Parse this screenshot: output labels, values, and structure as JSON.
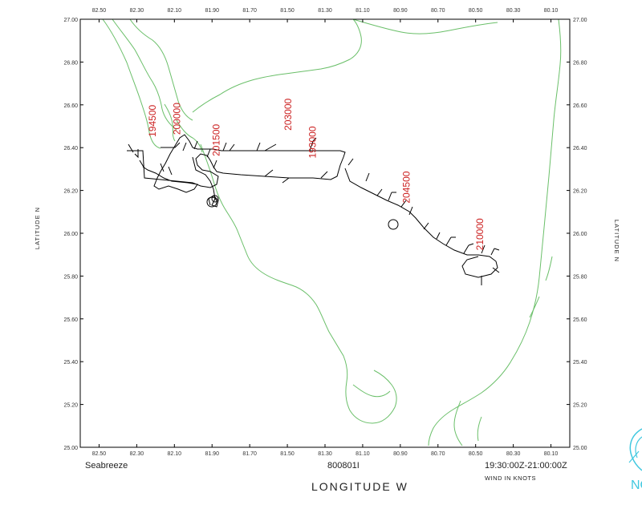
{
  "footer": {
    "left": "Seabreeze",
    "center": "800801I",
    "right": "19:30:00Z-21:00:00Z",
    "sub": "WIND IN KNOTS"
  },
  "axes": {
    "x_title": "LONGITUDE   W",
    "y_title": "LATITUDE   N",
    "x_ticks": [
      "82.50",
      "82.30",
      "82.10",
      "81.90",
      "81.70",
      "81.50",
      "81.30",
      "81.10",
      "80.90",
      "80.70",
      "80.50",
      "80.30",
      "80.10"
    ],
    "y_ticks": [
      "27.00",
      "26.80",
      "26.60",
      "26.40",
      "26.20",
      "26.00",
      "25.80",
      "25.60",
      "25.40",
      "25.20",
      "25.00"
    ]
  },
  "time_labels": [
    {
      "text": "194500",
      "lon": 82.2,
      "lat": 26.45
    },
    {
      "text": "200000",
      "lon": 82.07,
      "lat": 26.46
    },
    {
      "text": "203000",
      "lon": 81.48,
      "lat": 26.48
    },
    {
      "text": "193000",
      "lon": 81.35,
      "lat": 26.35
    },
    {
      "text": "201500",
      "lon": 81.86,
      "lat": 26.36
    },
    {
      "text": "204500",
      "lon": 80.85,
      "lat": 26.14
    },
    {
      "text": "210000",
      "lon": 80.46,
      "lat": 25.92
    }
  ],
  "colors": {
    "coastline": "#6abf69",
    "track": "#000000",
    "time_label": "#cc2222",
    "frame": "#000000",
    "logo": "#40c8e0"
  },
  "logo": {
    "text": "NO",
    "icon": "noaa-logo-icon"
  }
}
